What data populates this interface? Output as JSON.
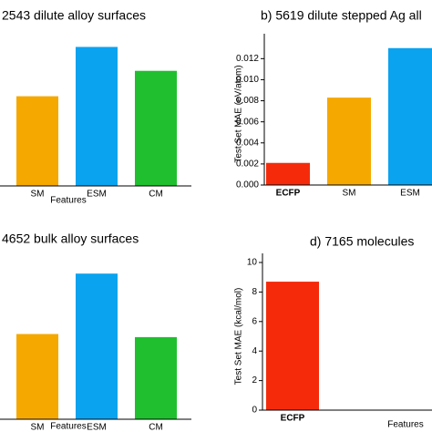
{
  "chart_data": [
    {
      "type": "bar",
      "title": "2543 dilute alloy surfaces",
      "categories": [
        "SM",
        "ESM",
        "CM"
      ],
      "values": [
        0.6,
        0.93,
        0.77
      ],
      "colors": [
        "#f5a800",
        "#0aa3f0",
        "#1fbf2f"
      ],
      "xlabel": "Features",
      "ylim": [
        0,
        1
      ]
    },
    {
      "type": "bar",
      "title": "b) 5619 dilute stepped Ag all",
      "categories": [
        "ECFP",
        "SM",
        "ESM"
      ],
      "values": [
        0.0021,
        0.0083,
        0.013
      ],
      "colors": [
        "#f52a0a",
        "#f5a800",
        "#0aa3f0"
      ],
      "ylabel": "Test Set MAE (eV/atom)",
      "ylim": [
        0,
        0.0135
      ],
      "yticks": [
        {
          "value": 0,
          "label": "0.000"
        },
        {
          "value": 0.002,
          "label": "0.002"
        },
        {
          "value": 0.004,
          "label": "0.004"
        },
        {
          "value": 0.006,
          "label": "0.006"
        },
        {
          "value": 0.008,
          "label": "0.008"
        },
        {
          "value": 0.01,
          "label": "0.010"
        },
        {
          "value": 0.012,
          "label": "0.012"
        }
      ]
    },
    {
      "type": "bar",
      "title": "4652 bulk alloy surfaces",
      "categories": [
        "SM",
        "ESM",
        "CM"
      ],
      "values": [
        0.55,
        0.94,
        0.53
      ],
      "colors": [
        "#f5a800",
        "#0aa3f0",
        "#1fbf2f"
      ],
      "xlabel": "Features",
      "ylim": [
        0,
        1
      ]
    },
    {
      "type": "bar",
      "title": "d) 7165 molecules",
      "categories": [
        "ECFP"
      ],
      "values": [
        8.7
      ],
      "colors": [
        "#f52a0a"
      ],
      "xlabel": "Features",
      "ylabel": "Test Set MAE (kcal/mol)",
      "ylim": [
        0,
        10
      ],
      "yticks": [
        0,
        2,
        4,
        6,
        8,
        10
      ]
    }
  ]
}
